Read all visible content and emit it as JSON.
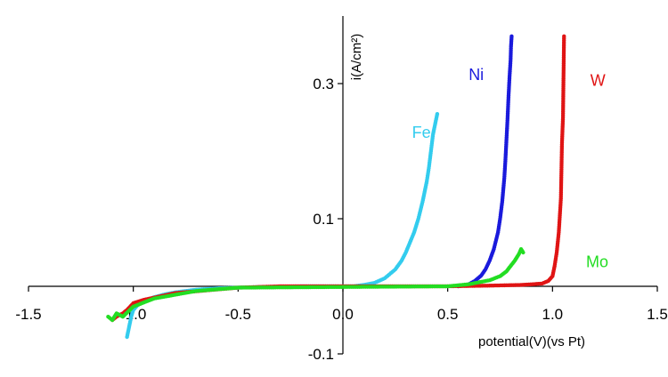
{
  "chart_data": {
    "type": "scatter",
    "title": "",
    "xlabel": "potential(V)(vs Pt)",
    "ylabel": "i(A/cm²)",
    "xlim": [
      -1.5,
      1.5
    ],
    "ylim": [
      -0.1,
      0.4
    ],
    "x_ticks": [
      "-1.5",
      "-1.0",
      "-0.5",
      "0.0",
      "0.5",
      "1.0",
      "1.5"
    ],
    "y_ticks": [
      "0.3",
      "0.1",
      "-0.1"
    ],
    "y_tick_values": [
      0.3,
      0.1,
      -0.1
    ],
    "x_tick_values": [
      -1.5,
      -1.0,
      -0.5,
      0.0,
      0.5,
      1.0,
      1.5
    ],
    "grid": false,
    "legend": "none",
    "series": [
      {
        "name": "Fe",
        "color": "#33ccee",
        "label_at": [
          0.33,
          0.22
        ],
        "x": [
          -1.03,
          -1.02,
          -1.01,
          -1.0,
          -0.98,
          -0.95,
          -0.9,
          -0.85,
          -0.8,
          -0.7,
          -0.6,
          -0.5,
          -0.4,
          -0.3,
          -0.2,
          -0.1,
          0.0,
          0.05,
          0.1,
          0.15,
          0.2,
          0.25,
          0.28,
          0.3,
          0.32,
          0.34,
          0.36,
          0.38,
          0.39,
          0.4,
          0.41,
          0.42,
          0.43,
          0.44,
          0.45
        ],
        "y": [
          -0.075,
          -0.06,
          -0.045,
          -0.035,
          -0.028,
          -0.022,
          -0.016,
          -0.012,
          -0.009,
          -0.005,
          -0.003,
          -0.002,
          -0.001,
          -0.0005,
          0.0,
          0.0,
          0.0,
          0.0,
          0.002,
          0.005,
          0.012,
          0.025,
          0.038,
          0.05,
          0.065,
          0.08,
          0.1,
          0.125,
          0.14,
          0.155,
          0.175,
          0.2,
          0.225,
          0.24,
          0.255
        ]
      },
      {
        "name": "Ni",
        "color": "#1a1adc",
        "label_at": [
          0.6,
          0.305
        ],
        "x": [
          0.55,
          0.6,
          0.63,
          0.66,
          0.68,
          0.7,
          0.72,
          0.74,
          0.75,
          0.76,
          0.77,
          0.775,
          0.78,
          0.785,
          0.79,
          0.795,
          0.8,
          0.802,
          0.805
        ],
        "y": [
          0.0,
          0.003,
          0.008,
          0.016,
          0.025,
          0.038,
          0.055,
          0.08,
          0.1,
          0.125,
          0.16,
          0.185,
          0.215,
          0.245,
          0.28,
          0.31,
          0.335,
          0.355,
          0.37
        ]
      },
      {
        "name": "W",
        "color": "#e01414",
        "label_at": [
          1.18,
          0.297
        ],
        "x": [
          -1.1,
          -1.08,
          -1.05,
          -1.03,
          -1.0,
          -0.95,
          -0.8,
          -0.5,
          -0.3,
          0.0,
          0.3,
          0.5,
          0.7,
          0.85,
          0.95,
          0.98,
          1.0,
          1.01,
          1.02,
          1.03,
          1.04,
          1.045,
          1.05,
          1.055
        ],
        "y": [
          -0.05,
          -0.045,
          -0.04,
          -0.035,
          -0.025,
          -0.02,
          -0.01,
          -0.002,
          0.0,
          0.0,
          0.0,
          0.0,
          0.001,
          0.002,
          0.004,
          0.008,
          0.015,
          0.03,
          0.05,
          0.08,
          0.13,
          0.21,
          0.25,
          0.37
        ]
      },
      {
        "name": "Mo",
        "color": "#22dd22",
        "label_at": [
          1.16,
          0.028
        ],
        "x": [
          -1.12,
          -1.1,
          -1.08,
          -1.05,
          -1.0,
          -0.9,
          -0.7,
          -0.5,
          0.5,
          0.6,
          0.7,
          0.75,
          0.78,
          0.8,
          0.82,
          0.84,
          0.85,
          0.86
        ],
        "y": [
          -0.045,
          -0.05,
          -0.04,
          -0.045,
          -0.03,
          -0.018,
          -0.007,
          -0.002,
          0.0,
          0.003,
          0.009,
          0.015,
          0.022,
          0.03,
          0.038,
          0.048,
          0.055,
          0.05
        ]
      }
    ]
  }
}
